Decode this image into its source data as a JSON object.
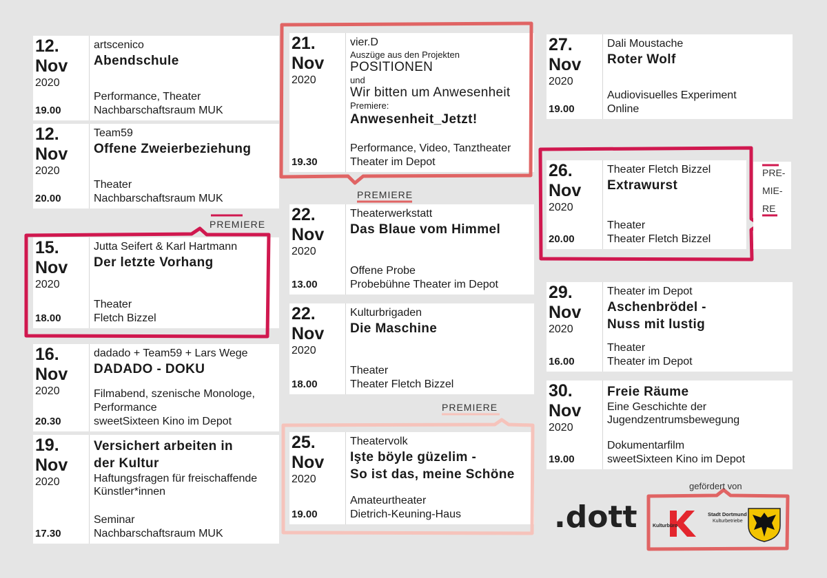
{
  "events": [
    {
      "day": "12.",
      "month": "Nov",
      "year": "2020",
      "time": "19.00",
      "organizer": "artscenico",
      "title": [
        "Abendschule"
      ],
      "category": "Performance, Theater",
      "venue": "Nachbarschaftsraum MUK"
    },
    {
      "day": "12.",
      "month": "Nov",
      "year": "2020",
      "time": "20.00",
      "organizer": "Team59",
      "title": [
        "Offene Zweierbeziehung"
      ],
      "category": "Theater",
      "venue": "Nachbarschaftsraum MUK"
    },
    {
      "day": "15.",
      "month": "Nov",
      "year": "2020",
      "time": "18.00",
      "organizer": "Jutta Seifert & Karl Hartmann",
      "title": [
        "Der letzte Vorhang"
      ],
      "category": "Theater",
      "venue": "Fletch Bizzel"
    },
    {
      "day": "16.",
      "month": "Nov",
      "year": "2020",
      "time": "20.30",
      "organizer": "dadado + Team59 + Lars Wege",
      "title": [
        "DADADO - DOKU"
      ],
      "category": "Filmabend, szenische Monologe, Performance",
      "venue": "sweetSixteen Kino im Depot"
    },
    {
      "day": "19.",
      "month": "Nov",
      "year": "2020",
      "time": "17.30",
      "title": [
        "Versichert arbeiten in",
        "der Kultur"
      ],
      "subtitle": "Haftungsfragen für freischaffende Künstler*innen",
      "category": "Seminar",
      "venue": "Nachbarschaftsraum MUK"
    },
    {
      "day": "21.",
      "month": "Nov",
      "year": "2020",
      "time": "19.30",
      "organizer": "vier.D",
      "intro": "Auszüge aus den Projekten",
      "projects": [
        "POSITIONEN",
        "und",
        "Wir bitten um Anwesenheit"
      ],
      "premiere_note": "Premiere:",
      "title": [
        "Anwesenheit_Jetzt!"
      ],
      "category": "Performance,  Video, Tanztheater",
      "venue": "Theater im Depot"
    },
    {
      "day": "22.",
      "month": "Nov",
      "year": "2020",
      "time": "13.00",
      "organizer": "Theaterwerkstatt",
      "title": [
        "Das Blaue vom Himmel"
      ],
      "category": "Offene Probe",
      "venue": "Probebühne Theater im Depot"
    },
    {
      "day": "22.",
      "month": "Nov",
      "year": "2020",
      "time": "18.00",
      "organizer": "Kulturbrigaden",
      "title": [
        "Die Maschine"
      ],
      "category": "Theater",
      "venue": "Theater Fletch Bizzel"
    },
    {
      "day": "25.",
      "month": "Nov",
      "year": "2020",
      "time": "19.00",
      "organizer": "Theatervolk",
      "title": [
        "Işte böyle güzelim -",
        "So ist das, meine Schöne"
      ],
      "category": "Amateurtheater",
      "venue": "Dietrich-Keuning-Haus"
    },
    {
      "day": "27.",
      "month": "Nov",
      "year": "2020",
      "time": "19.00",
      "organizer": "Dali Moustache",
      "title": [
        "Roter Wolf"
      ],
      "category": "Audiovisuelles Experiment",
      "venue": "Online"
    },
    {
      "day": "26.",
      "month": "Nov",
      "year": "2020",
      "time": "20.00",
      "organizer": "Theater Fletch Bizzel",
      "title": [
        "Extrawurst"
      ],
      "category": "Theater",
      "venue": "Theater Fletch Bizzel"
    },
    {
      "day": "29.",
      "month": "Nov",
      "year": "2020",
      "time": "16.00",
      "organizer": "Theater im Depot",
      "title": [
        "Aschenbrödel -",
        "Nuss mit lustig"
      ],
      "category": "Theater",
      "venue": "Theater im Depot"
    },
    {
      "day": "30.",
      "month": "Nov",
      "year": "2020",
      "time": "19.00",
      "title": [
        "Freie Räume"
      ],
      "subtitle": "Eine Geschichte der Jugendzentrumsbewegung",
      "category": "Dokumentarfilm",
      "venue": "sweetSixteen Kino im Depot"
    }
  ],
  "premiere_labels": [
    "PREMIERE",
    "PREMIERE",
    "PREMIERE"
  ],
  "premiere_vertical": [
    "PRE-",
    "MIE-",
    "RE"
  ],
  "sponsor": {
    "label": "gefördert von",
    "logo": ".dott",
    "office": "Kulturbüro",
    "city": "Stadt Dortmund",
    "department": "Kulturbetriebe"
  }
}
